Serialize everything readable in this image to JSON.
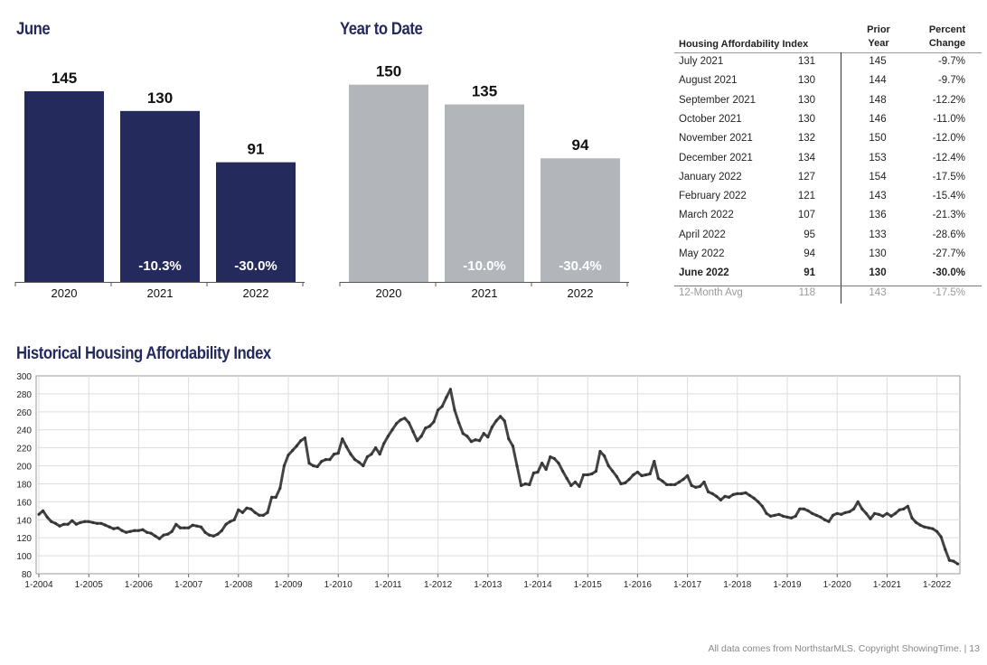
{
  "sections": {
    "june_title": "June",
    "ytd_title": "Year to Date",
    "history_title": "Historical Housing Affordability Index"
  },
  "table": {
    "headers": [
      "Housing Affordability Index",
      "",
      "Prior\nYear",
      "Percent\nChange"
    ],
    "header_prior": "Prior",
    "header_year": "Year",
    "header_percent": "Percent",
    "header_change": "Change",
    "rows": [
      {
        "month": "July 2021",
        "value": "131",
        "prior": "145",
        "change": "-9.7%"
      },
      {
        "month": "August 2021",
        "value": "130",
        "prior": "144",
        "change": "-9.7%"
      },
      {
        "month": "September 2021",
        "value": "130",
        "prior": "148",
        "change": "-12.2%"
      },
      {
        "month": "October 2021",
        "value": "130",
        "prior": "146",
        "change": "-11.0%"
      },
      {
        "month": "November 2021",
        "value": "132",
        "prior": "150",
        "change": "-12.0%"
      },
      {
        "month": "December 2021",
        "value": "134",
        "prior": "153",
        "change": "-12.4%"
      },
      {
        "month": "January 2022",
        "value": "127",
        "prior": "154",
        "change": "-17.5%"
      },
      {
        "month": "February 2022",
        "value": "121",
        "prior": "143",
        "change": "-15.4%"
      },
      {
        "month": "March 2022",
        "value": "107",
        "prior": "136",
        "change": "-21.3%"
      },
      {
        "month": "April 2022",
        "value": "95",
        "prior": "133",
        "change": "-28.6%"
      },
      {
        "month": "May 2022",
        "value": "94",
        "prior": "130",
        "change": "-27.7%"
      },
      {
        "month": "June 2022",
        "value": "91",
        "prior": "130",
        "change": "-30.0%"
      },
      {
        "month": "12-Month Avg",
        "value": "118",
        "prior": "143",
        "change": "-17.5%"
      }
    ]
  },
  "footer": "All data comes from NorthstarMLS. Copyright ShowingTime.  |  13",
  "colors": {
    "june_bar": "#252a5c",
    "ytd_bar": "#b2b6bb",
    "line": "#444444",
    "title": "#252a5c"
  },
  "chart_data": [
    {
      "type": "bar",
      "title": "June",
      "categories": [
        "2020",
        "2021",
        "2022"
      ],
      "values": [
        145,
        130,
        91
      ],
      "value_labels": [
        "145",
        "130",
        "91"
      ],
      "change_labels": [
        "",
        "-10.3%",
        "-30.0%"
      ]
    },
    {
      "type": "bar",
      "title": "Year to Date",
      "categories": [
        "2020",
        "2021",
        "2022"
      ],
      "values": [
        150,
        135,
        94
      ],
      "value_labels": [
        "150",
        "135",
        "94"
      ],
      "change_labels": [
        "",
        "-10.0%",
        "-30.4%"
      ]
    },
    {
      "type": "line",
      "title": "Historical Housing Affordability Index",
      "ylim": [
        80,
        300
      ],
      "yticks": [
        "300",
        "280",
        "260",
        "240",
        "220",
        "200",
        "180",
        "160",
        "140",
        "120",
        "100",
        "80"
      ],
      "xticks": [
        "1-2004",
        "1-2005",
        "1-2006",
        "1-2007",
        "1-2008",
        "1-2009",
        "1-2010",
        "1-2011",
        "1-2012",
        "1-2013",
        "1-2014",
        "1-2015",
        "1-2016",
        "1-2017",
        "1-2018",
        "1-2019",
        "1-2020",
        "1-2021",
        "1-2022"
      ],
      "x_start": "1-2004",
      "values": [
        146,
        150,
        143,
        138,
        136,
        133,
        135,
        135,
        139,
        135,
        137,
        138,
        138,
        137,
        136,
        136,
        134,
        132,
        130,
        131,
        128,
        126,
        127,
        128,
        128,
        129,
        126,
        125,
        122,
        119,
        123,
        124,
        127,
        135,
        131,
        131,
        131,
        134,
        133,
        132,
        126,
        123,
        122,
        124,
        128,
        135,
        138,
        140,
        151,
        148,
        153,
        152,
        148,
        145,
        145,
        148,
        165,
        165,
        175,
        200,
        212,
        217,
        222,
        228,
        231,
        203,
        200,
        199,
        205,
        207,
        207,
        213,
        214,
        230,
        221,
        213,
        207,
        204,
        200,
        210,
        213,
        220,
        213,
        225,
        233,
        240,
        247,
        251,
        253,
        248,
        238,
        228,
        233,
        242,
        244,
        249,
        262,
        266,
        276,
        285,
        262,
        248,
        236,
        233,
        227,
        229,
        228,
        236,
        232,
        243,
        250,
        255,
        250,
        230,
        222,
        200,
        178,
        180,
        179,
        192,
        193,
        203,
        196,
        210,
        208,
        203,
        194,
        186,
        178,
        182,
        177,
        190,
        190,
        191,
        194,
        216,
        211,
        200,
        194,
        188,
        180,
        181,
        185,
        190,
        193,
        189,
        190,
        191,
        205,
        186,
        183,
        179,
        179,
        179,
        182,
        185,
        189,
        178,
        176,
        177,
        182,
        171,
        169,
        166,
        162,
        166,
        165,
        168,
        169,
        169,
        170,
        167,
        164,
        160,
        155,
        147,
        144,
        145,
        146,
        144,
        143,
        142,
        144,
        152,
        152,
        150,
        147,
        145,
        143,
        140,
        138,
        145,
        147,
        146,
        148,
        149,
        152,
        160,
        152,
        147,
        141,
        147,
        146,
        144,
        147,
        144,
        147,
        151,
        152,
        155,
        142,
        137,
        134,
        132,
        131,
        130,
        127,
        121,
        107,
        95,
        94,
        91
      ]
    }
  ]
}
